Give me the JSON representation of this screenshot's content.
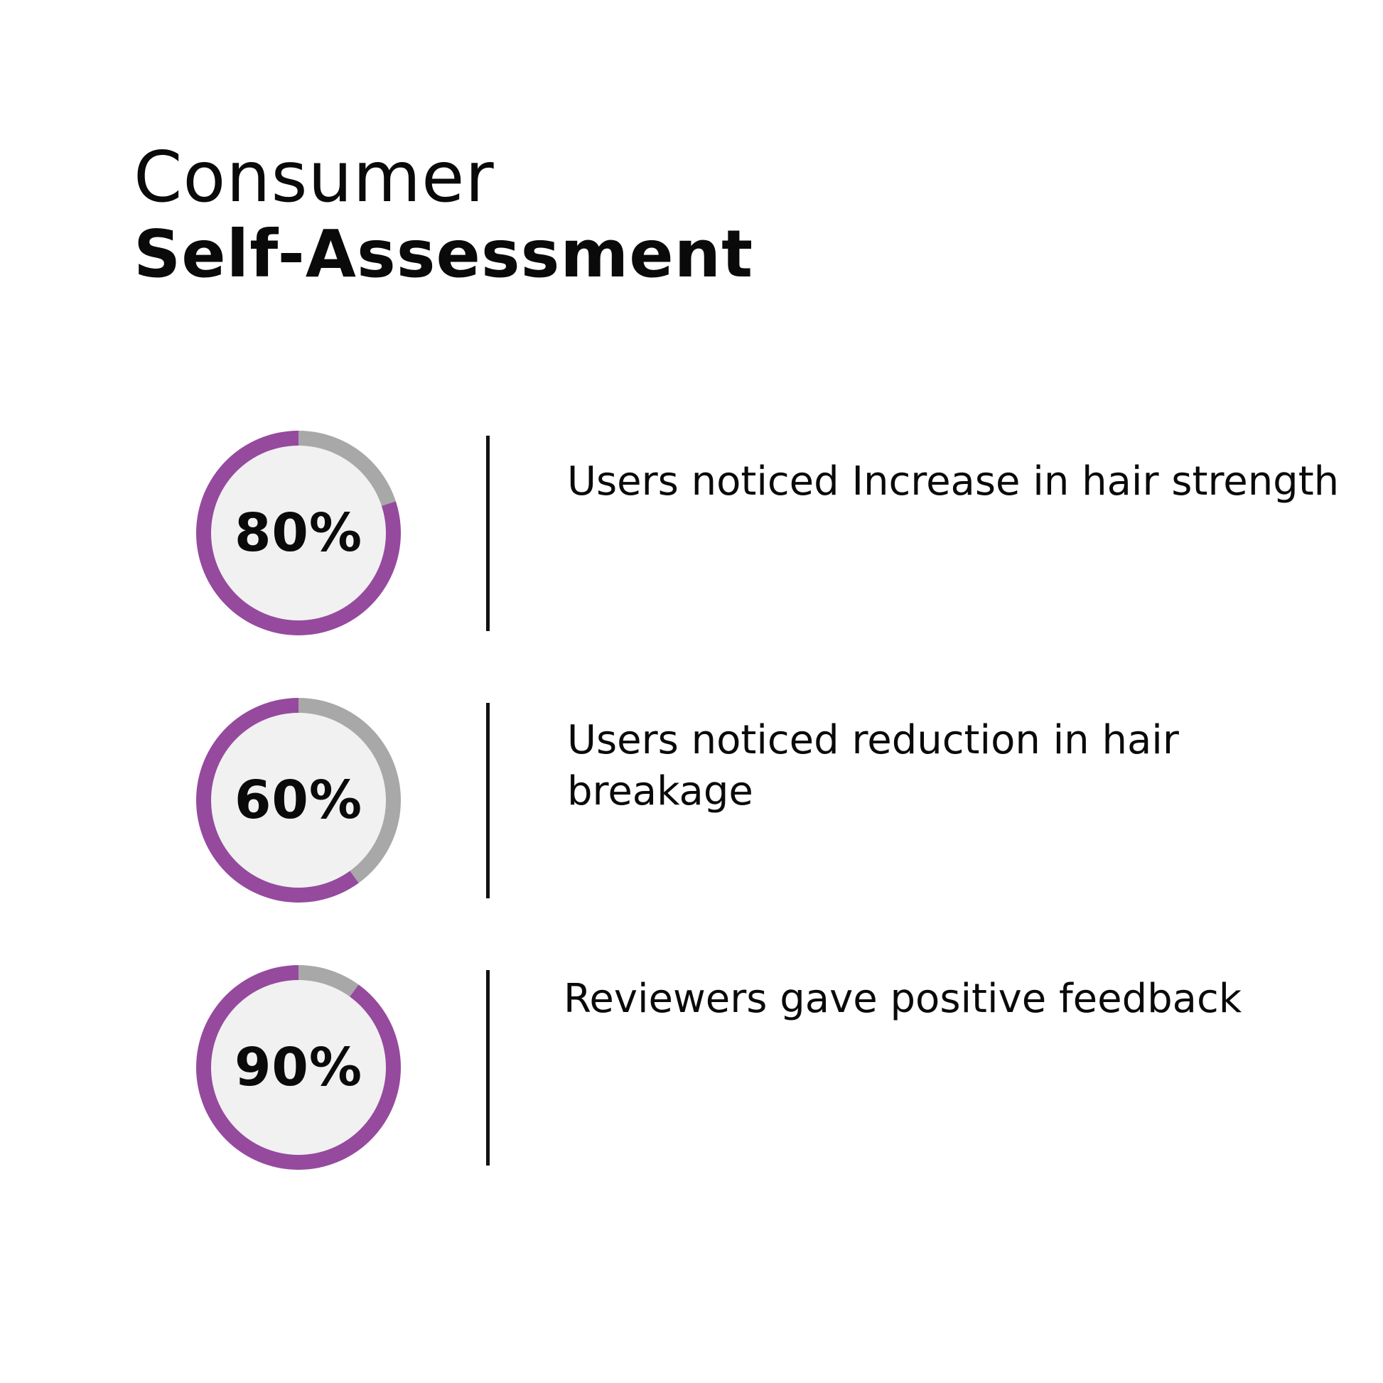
{
  "title": {
    "line1": "Consumer",
    "line2": "Self-Assessment"
  },
  "colors": {
    "accent": "#954A9E",
    "remaining": "#A8A8A8",
    "inner": "#F1F1F1"
  },
  "stats": [
    {
      "label": "80%",
      "value": 80,
      "description": "Users noticed Increase in hair strength"
    },
    {
      "label": "60%",
      "value": 60,
      "description": "Users noticed reduction in hair breakage"
    },
    {
      "label": "90%",
      "value": 90,
      "description": "Reviewers gave positive feedback"
    }
  ]
}
